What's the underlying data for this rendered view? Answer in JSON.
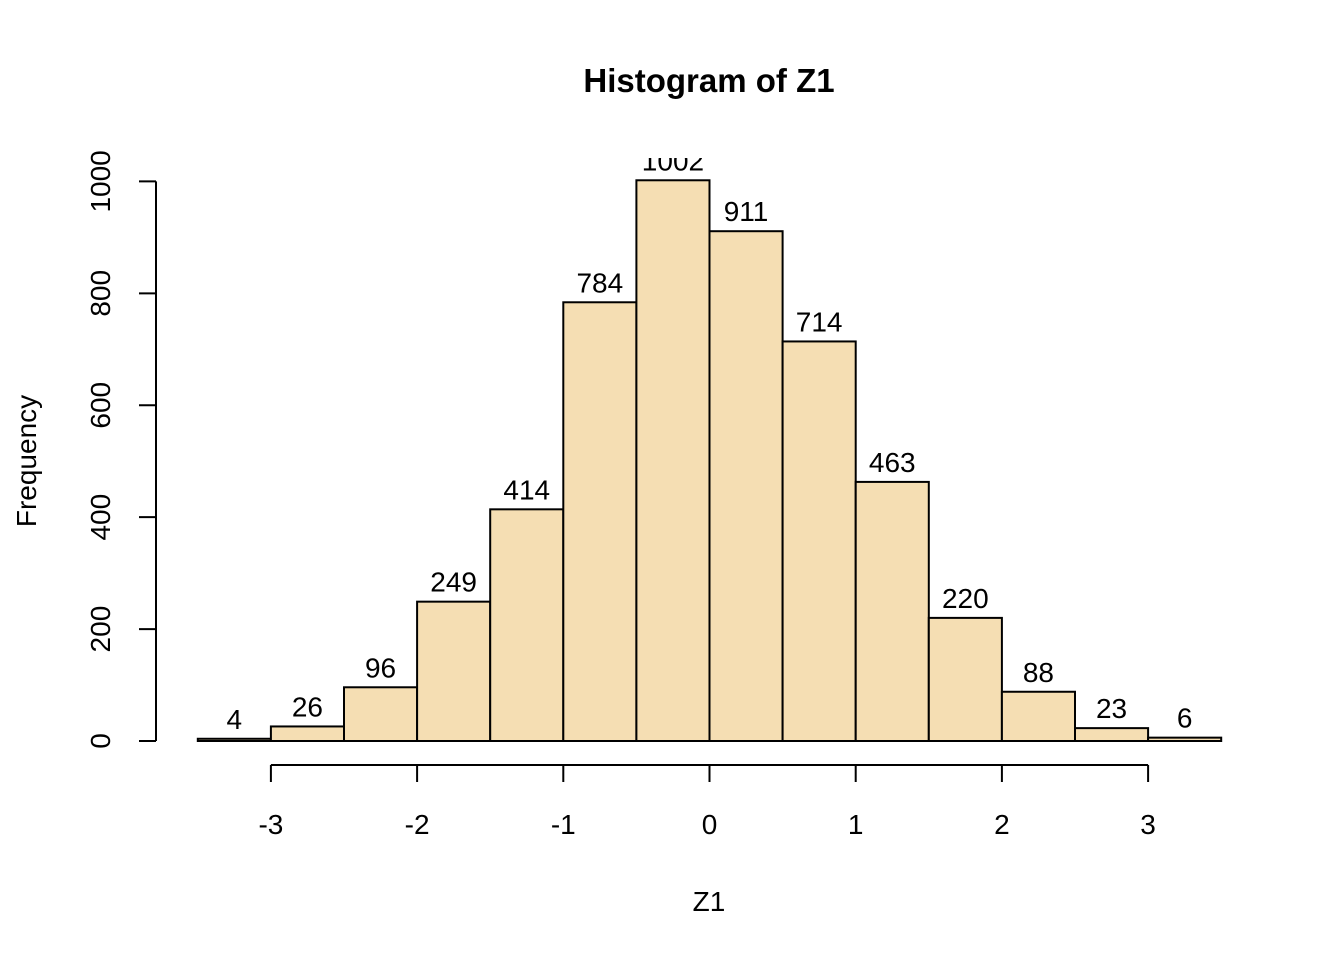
{
  "chart_data": {
    "type": "bar",
    "title": "Histogram of Z1",
    "xlabel": "Z1",
    "ylabel": "Frequency",
    "bins": [
      [
        -3.5,
        -3.0
      ],
      [
        -3.0,
        -2.5
      ],
      [
        -2.5,
        -2.0
      ],
      [
        -2.0,
        -1.5
      ],
      [
        -1.5,
        -1.0
      ],
      [
        -1.0,
        -0.5
      ],
      [
        -0.5,
        0.0
      ],
      [
        0.0,
        0.5
      ],
      [
        0.5,
        1.0
      ],
      [
        1.0,
        1.5
      ],
      [
        1.5,
        2.0
      ],
      [
        2.0,
        2.5
      ],
      [
        2.5,
        3.0
      ],
      [
        3.0,
        3.5
      ]
    ],
    "values": [
      4,
      26,
      96,
      249,
      414,
      784,
      1002,
      911,
      714,
      463,
      220,
      88,
      23,
      6
    ],
    "labels": [
      "4",
      "26",
      "96",
      "249",
      "414",
      "784",
      "1002",
      "911",
      "714",
      "463",
      "220",
      "88",
      "23",
      "6"
    ],
    "xlim": [
      -3.5,
      3.5
    ],
    "ylim": [
      0,
      1000
    ],
    "x_ticks": [
      -3,
      -2,
      -1,
      0,
      1,
      2,
      3
    ],
    "x_tick_labels": [
      "-3",
      "-2",
      "-1",
      "0",
      "1",
      "2",
      "3"
    ],
    "y_ticks": [
      0,
      200,
      400,
      600,
      800,
      1000
    ],
    "y_tick_labels": [
      "0",
      "200",
      "400",
      "600",
      "800",
      "1000"
    ],
    "bar_color": "#F5DEB3",
    "border_color": "#000000",
    "grid": false,
    "legend": "none"
  }
}
